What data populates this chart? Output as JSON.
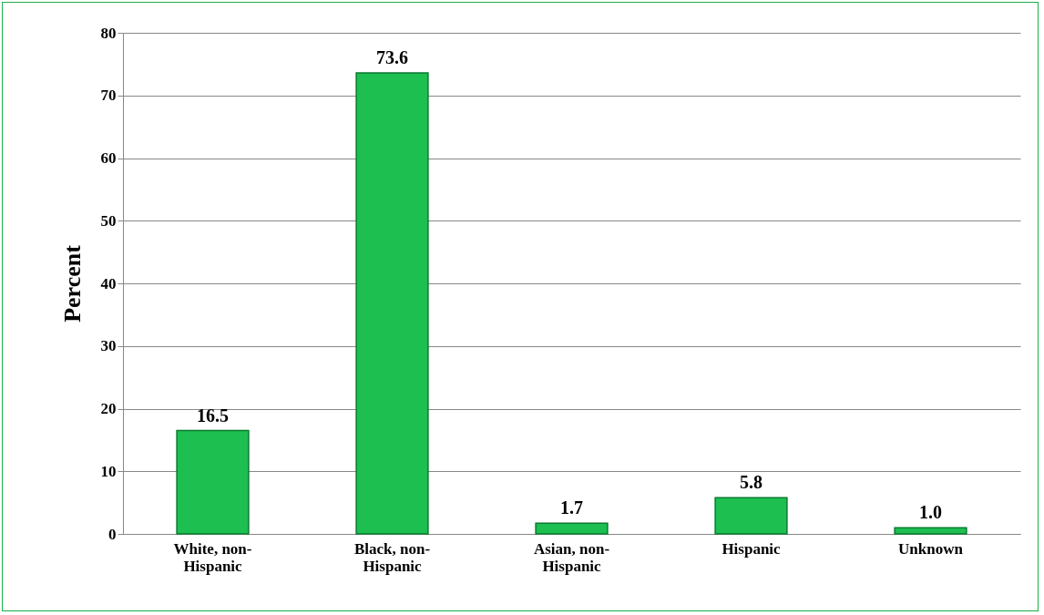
{
  "chart_data": {
    "type": "bar",
    "ylabel": "Percent",
    "categories": [
      "White, non-Hispanic",
      "Black, non-Hispanic",
      "Asian, non-Hispanic",
      "Hispanic",
      "Unknown"
    ],
    "values": [
      16.5,
      73.6,
      1.7,
      5.8,
      1.0
    ],
    "color": "#1cbf50",
    "ylim": [
      0,
      80
    ],
    "yticks": [
      0,
      10,
      20,
      30,
      40,
      50,
      60,
      70,
      80
    ],
    "value_labels": [
      "16.5",
      "73.6",
      "1.7",
      "5.8",
      "1.0"
    ],
    "grid": "y"
  }
}
